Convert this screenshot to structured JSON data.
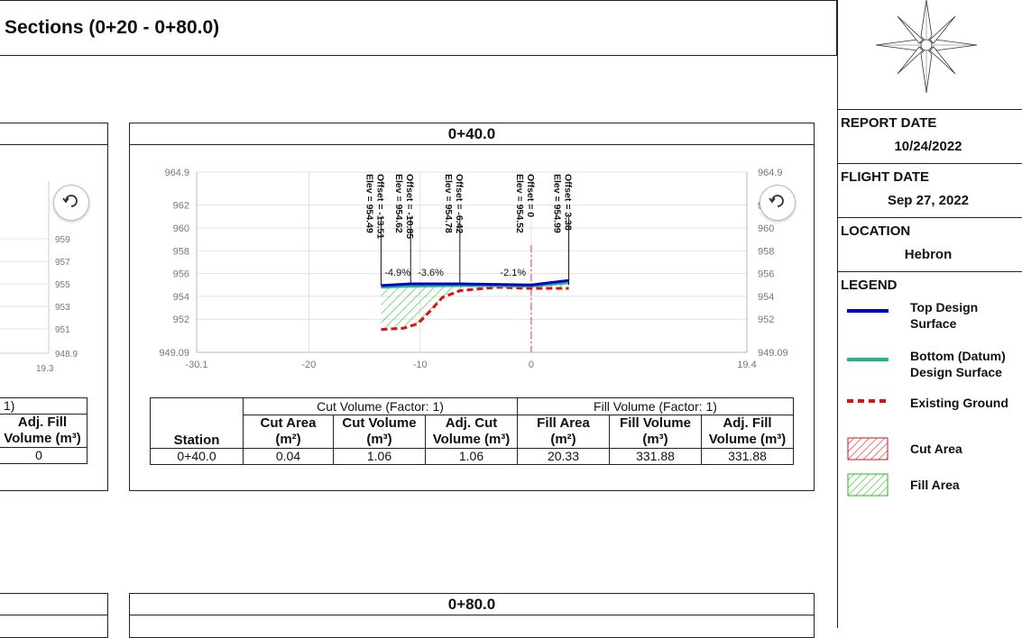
{
  "page": {
    "title": "Sections (0+20 - 0+80.0)"
  },
  "side": {
    "report_date_label": "REPORT DATE",
    "report_date": "10/24/2022",
    "flight_date_label": "FLIGHT DATE",
    "flight_date": "Sep 27, 2022",
    "location_label": "LOCATION",
    "location": "Hebron",
    "legend_label": "LEGEND",
    "legend": [
      {
        "label": "Top Design Surface",
        "color": "#0000cc",
        "style": "solid"
      },
      {
        "label": "Bottom (Datum) Design Surface",
        "color": "#1bb58f",
        "style": "solid"
      },
      {
        "label": "Existing Ground",
        "color": "#dd1111",
        "style": "dashed"
      },
      {
        "label": "Cut Area",
        "color": "#dd1111",
        "style": "hatch"
      },
      {
        "label": "Fill Area",
        "color": "#22bb22",
        "style": "hatch"
      }
    ]
  },
  "left_panel": {
    "y_ticks": [
      "959",
      "957",
      "955",
      "953",
      "951",
      "948.9"
    ],
    "x_tick": "19.3",
    "table_head_partial": "1)",
    "col_head_partial": "Adj. Fill\nVolume (m³)",
    "value_partial": "0"
  },
  "section_40": {
    "title": "0+40.0",
    "chart_data": {
      "type": "line",
      "xlim": [
        -30.1,
        19.4
      ],
      "ylim": [
        949.09,
        964.9
      ],
      "x_ticks": [
        "-30.1",
        "-20",
        "-10",
        "0",
        "19.4"
      ],
      "x_tick_values": [
        -30.1,
        -20,
        -10,
        0,
        19.4
      ],
      "y_ticks_left": [
        "964.9",
        "962",
        "960",
        "958",
        "956",
        "954",
        "952",
        "949.09"
      ],
      "y_ticks_right": [
        "964.9",
        "962",
        "960",
        "958",
        "956",
        "954",
        "952",
        "949.09"
      ],
      "y_tick_values": [
        964.9,
        962,
        960,
        958,
        956,
        954,
        952,
        949.09
      ],
      "series": [
        {
          "name": "Top Design Surface",
          "points": [
            [
              -13.51,
              954.95
            ],
            [
              -10.85,
              955.1
            ],
            [
              -6.42,
              955.1
            ],
            [
              0,
              955.0
            ],
            [
              3.38,
              955.4
            ]
          ]
        },
        {
          "name": "Bottom (Datum) Design Surface",
          "points": [
            [
              -13.51,
              954.8
            ],
            [
              -10.85,
              954.9
            ],
            [
              -6.42,
              954.95
            ],
            [
              0,
              954.9
            ],
            [
              3.38,
              955.2
            ]
          ]
        },
        {
          "name": "Existing Ground",
          "points": [
            [
              -13.51,
              951.1
            ],
            [
              -11.5,
              951.2
            ],
            [
              -10.2,
              951.6
            ],
            [
              -9.2,
              952.6
            ],
            [
              -8.0,
              953.9
            ],
            [
              -6.4,
              954.5
            ],
            [
              -3.0,
              954.8
            ],
            [
              0,
              954.7
            ],
            [
              3.38,
              954.7
            ]
          ]
        }
      ],
      "offset_labels": [
        {
          "offset": -13.51,
          "elev_text": "Elev = 954.49",
          "offset_text": "Offset = -13.51"
        },
        {
          "offset": -10.85,
          "elev_text": "Elev = 954.62",
          "offset_text": "Offset = -10.85"
        },
        {
          "offset": -6.42,
          "elev_text": "Elev = 954.78",
          "offset_text": "Offset = -6.42"
        },
        {
          "offset": 0,
          "elev_text": "Elev = 954.52",
          "offset_text": "Offset = 0"
        },
        {
          "offset": 3.38,
          "elev_text": "Elev = 954.99",
          "offset_text": "Offset = 3.38"
        }
      ],
      "slope_labels": [
        {
          "x": -13.2,
          "text": "-4.9%"
        },
        {
          "x": -10.2,
          "text": "-3.6%"
        },
        {
          "x": -2.8,
          "text": "-2.1%"
        }
      ]
    },
    "table": {
      "cut_group": "Cut Volume (Factor: 1)",
      "fill_group": "Fill Volume (Factor: 1)",
      "headers": [
        "Station",
        "Cut Area\n(m²)",
        "Cut Volume\n(m³)",
        "Adj. Cut\nVolume (m³)",
        "Fill Area\n(m²)",
        "Fill Volume\n(m³)",
        "Adj. Fill\nVolume (m³)"
      ],
      "row": [
        "0+40.0",
        "0.04",
        "1.06",
        "1.06",
        "20.33",
        "331.88",
        "331.88"
      ]
    }
  },
  "section_80": {
    "title": "0+80.0"
  }
}
